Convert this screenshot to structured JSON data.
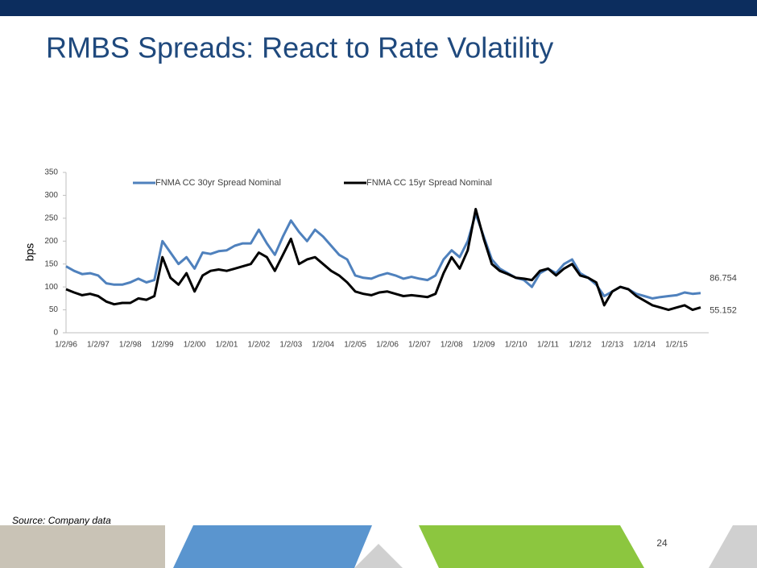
{
  "chart_data": {
    "type": "line",
    "title": "RMBS Spreads: React to Rate Volatility",
    "y_label": "bps",
    "categories": [
      "1/2/96",
      null,
      null,
      null,
      "1/2/97",
      null,
      null,
      null,
      "1/2/98",
      null,
      null,
      null,
      "1/2/99",
      null,
      null,
      null,
      "1/2/00",
      null,
      null,
      null,
      "1/2/01",
      null,
      null,
      null,
      "1/2/02",
      null,
      null,
      null,
      "1/2/03",
      null,
      null,
      null,
      "1/2/04",
      null,
      null,
      null,
      "1/2/05",
      null,
      null,
      null,
      "1/2/06",
      null,
      null,
      null,
      "1/2/07",
      null,
      null,
      null,
      "1/2/08",
      null,
      null,
      null,
      "1/2/09",
      null,
      null,
      null,
      "1/2/10",
      null,
      null,
      null,
      "1/2/11",
      null,
      null,
      null,
      "1/2/12",
      null,
      null,
      null,
      "1/2/13",
      null,
      null,
      null,
      "1/2/14",
      null,
      null,
      null,
      "1/2/15",
      null,
      null,
      null
    ],
    "series": [
      {
        "name": "FNMA CC 30yr Spread Nominal",
        "color": "#4f81bd",
        "values": [
          145,
          135,
          128,
          130,
          125,
          108,
          105,
          105,
          110,
          118,
          110,
          115,
          200,
          175,
          150,
          165,
          140,
          175,
          172,
          178,
          180,
          190,
          195,
          195,
          225,
          195,
          170,
          210,
          245,
          220,
          200,
          225,
          210,
          190,
          170,
          160,
          125,
          120,
          118,
          125,
          130,
          125,
          118,
          122,
          118,
          115,
          125,
          160,
          180,
          165,
          200,
          260,
          210,
          160,
          140,
          130,
          120,
          115,
          100,
          130,
          140,
          130,
          150,
          160,
          130,
          120,
          105,
          80,
          90,
          100,
          95,
          85,
          80,
          75,
          78,
          80,
          82,
          88,
          85,
          86.754
        ]
      },
      {
        "name": "FNMA CC 15yr  Spread Nominal",
        "color": "#000000",
        "values": [
          95,
          88,
          82,
          85,
          80,
          68,
          62,
          65,
          65,
          75,
          72,
          80,
          165,
          120,
          105,
          130,
          90,
          125,
          135,
          138,
          135,
          140,
          145,
          150,
          175,
          165,
          135,
          170,
          205,
          150,
          160,
          165,
          150,
          135,
          125,
          110,
          90,
          85,
          82,
          88,
          90,
          85,
          80,
          82,
          80,
          78,
          85,
          130,
          165,
          140,
          180,
          270,
          205,
          150,
          135,
          128,
          120,
          118,
          115,
          135,
          140,
          125,
          140,
          150,
          125,
          120,
          110,
          60,
          90,
          100,
          95,
          80,
          70,
          60,
          55,
          50,
          55,
          60,
          50,
          55.152
        ]
      }
    ],
    "ylim": [
      0,
      350
    ],
    "yticks": [
      0,
      50,
      100,
      150,
      200,
      250,
      300,
      350
    ],
    "legend": "top"
  },
  "footer": {
    "source": "Source: Company data",
    "page_number": "24"
  }
}
